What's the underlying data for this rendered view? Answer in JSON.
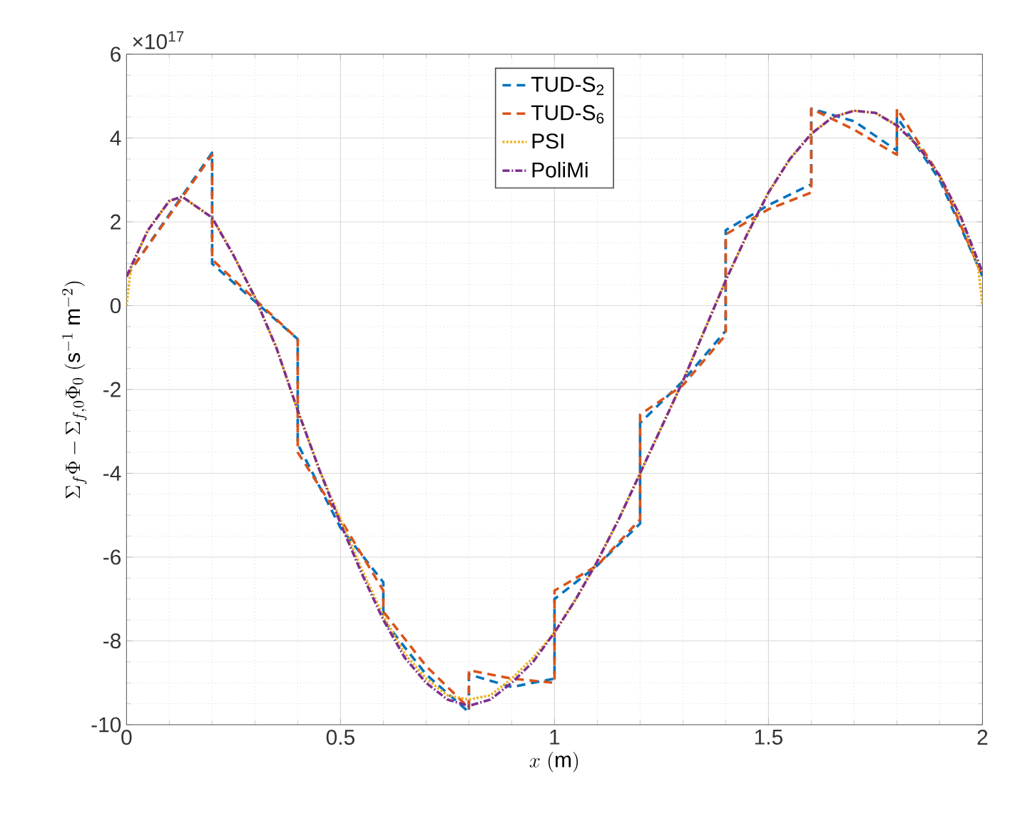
{
  "chart_data": {
    "type": "line",
    "xlabel": "x\\ (\\mathrm{m})",
    "ylabel": "\\Sigma_f\\Phi - \\Sigma_{f,0}\\Phi_0\\ (\\mathrm{s}^{-1}\\ \\mathrm{m}^{-2})",
    "annotations": [
      "×10$^{17}$"
    ],
    "xlim": [
      0,
      2
    ],
    "ylim": [
      -10,
      6
    ],
    "xticks": [
      0,
      0.5,
      1,
      1.5,
      2
    ],
    "yticks": [
      -10,
      -8,
      -6,
      -4,
      -2,
      0,
      2,
      4,
      6
    ],
    "grid": true,
    "legend": "top",
    "marker": "none",
    "series": [
      {
        "name": "TUD-S$_{2}$",
        "color": "#0072bd",
        "line_style": "dashed",
        "x": [
          0,
          0.2,
          0.2,
          0.4,
          0.4,
          0.5,
          0.6,
          0.6,
          0.7,
          0.8,
          0.8,
          0.9,
          1.0,
          1.0,
          1.1,
          1.2,
          1.2,
          1.3,
          1.4,
          1.4,
          1.5,
          1.6,
          1.6,
          1.7,
          1.8,
          1.8,
          1.9,
          2.0
        ],
        "values": [
          0.7,
          3.65,
          1.0,
          -0.8,
          -3.3,
          -5.3,
          -6.6,
          -7.5,
          -8.8,
          -9.7,
          -8.8,
          -9.1,
          -8.9,
          -7.0,
          -6.2,
          -5.2,
          -2.8,
          -1.8,
          -0.6,
          1.8,
          2.4,
          2.9,
          4.7,
          4.4,
          3.7,
          4.5,
          3.0,
          0.7
        ]
      },
      {
        "name": "TUD-S$_{6}$",
        "color": "#d95319",
        "line_style": "dashed",
        "x": [
          0,
          0.2,
          0.2,
          0.4,
          0.4,
          0.5,
          0.6,
          0.6,
          0.7,
          0.8,
          0.8,
          0.9,
          1.0,
          1.0,
          1.1,
          1.2,
          1.2,
          1.3,
          1.4,
          1.4,
          1.5,
          1.6,
          1.6,
          1.7,
          1.8,
          1.8,
          1.9,
          2.0
        ],
        "values": [
          0.7,
          3.6,
          1.1,
          -0.8,
          -3.5,
          -5.1,
          -6.8,
          -7.3,
          -8.6,
          -9.6,
          -8.7,
          -8.9,
          -9.0,
          -6.8,
          -6.2,
          -5.1,
          -2.6,
          -1.9,
          -0.7,
          1.7,
          2.3,
          2.7,
          4.7,
          4.2,
          3.6,
          4.7,
          3.1,
          0.7
        ]
      },
      {
        "name": "PSI",
        "color": "#edb120",
        "line_style": "dotted",
        "x": [
          0,
          0.01,
          0.05,
          0.1,
          0.13,
          0.2,
          0.25,
          0.3,
          0.35,
          0.4,
          0.45,
          0.5,
          0.55,
          0.6,
          0.65,
          0.7,
          0.75,
          0.8,
          0.85,
          0.9,
          0.95,
          1.0,
          1.05,
          1.1,
          1.15,
          1.2,
          1.25,
          1.3,
          1.35,
          1.4,
          1.45,
          1.5,
          1.55,
          1.6,
          1.65,
          1.7,
          1.75,
          1.8,
          1.85,
          1.9,
          1.95,
          1.99,
          2.0
        ],
        "values": [
          0,
          0.9,
          1.8,
          2.5,
          2.6,
          2.1,
          1.2,
          0.2,
          -1.0,
          -2.5,
          -3.9,
          -5.1,
          -6.3,
          -7.4,
          -8.3,
          -8.9,
          -9.3,
          -9.4,
          -9.3,
          -8.9,
          -8.4,
          -7.8,
          -7.0,
          -6.1,
          -5.1,
          -4.0,
          -2.9,
          -1.8,
          -0.6,
          0.6,
          1.7,
          2.7,
          3.5,
          4.1,
          4.5,
          4.65,
          4.6,
          4.3,
          3.8,
          3.1,
          2.1,
          0.9,
          0
        ]
      },
      {
        "name": "PoliMi",
        "color": "#7e2f8e",
        "line_style": "dashdot",
        "x": [
          0,
          0.05,
          0.1,
          0.13,
          0.2,
          0.25,
          0.3,
          0.35,
          0.4,
          0.45,
          0.5,
          0.55,
          0.6,
          0.65,
          0.7,
          0.75,
          0.8,
          0.85,
          0.9,
          0.95,
          1.0,
          1.05,
          1.1,
          1.15,
          1.2,
          1.25,
          1.3,
          1.35,
          1.4,
          1.45,
          1.5,
          1.55,
          1.6,
          1.65,
          1.7,
          1.75,
          1.8,
          1.85,
          1.9,
          1.95,
          2.0
        ],
        "values": [
          0.7,
          1.8,
          2.5,
          2.6,
          2.1,
          1.2,
          0.2,
          -1.0,
          -2.5,
          -3.9,
          -5.2,
          -6.4,
          -7.5,
          -8.4,
          -9.0,
          -9.4,
          -9.55,
          -9.4,
          -9.0,
          -8.5,
          -7.8,
          -7.0,
          -6.1,
          -5.1,
          -4.0,
          -2.9,
          -1.8,
          -0.6,
          0.6,
          1.7,
          2.7,
          3.5,
          4.1,
          4.5,
          4.65,
          4.6,
          4.3,
          3.8,
          3.1,
          2.1,
          0.8
        ]
      }
    ]
  }
}
